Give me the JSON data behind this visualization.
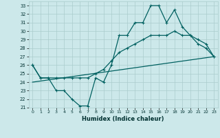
{
  "xlabel": "Humidex (Indice chaleur)",
  "ylabel": "",
  "bg_color": "#cce8ea",
  "grid_color": "#aacccc",
  "line_color": "#006060",
  "ylim": [
    21,
    33.5
  ],
  "xlim": [
    -0.5,
    23.5
  ],
  "yticks": [
    21,
    22,
    23,
    24,
    25,
    26,
    27,
    28,
    29,
    30,
    31,
    32,
    33
  ],
  "xticks": [
    0,
    1,
    2,
    3,
    4,
    5,
    6,
    7,
    8,
    9,
    10,
    11,
    12,
    13,
    14,
    15,
    16,
    17,
    18,
    19,
    20,
    21,
    22,
    23
  ],
  "line1_x": [
    0,
    1,
    2,
    3,
    4,
    5,
    6,
    7,
    8,
    9,
    10,
    11,
    12,
    13,
    14,
    15,
    16,
    17,
    18,
    19,
    20,
    21,
    22,
    23
  ],
  "line1_y": [
    26,
    24.5,
    24.5,
    23,
    23,
    22,
    21.2,
    21.2,
    24.5,
    24,
    26,
    29.5,
    29.5,
    31,
    31,
    33,
    33,
    31,
    32.5,
    30.5,
    29.5,
    28.5,
    28,
    27
  ],
  "line2_x": [
    0,
    1,
    2,
    3,
    4,
    5,
    6,
    7,
    8,
    9,
    10,
    11,
    12,
    13,
    14,
    15,
    16,
    17,
    18,
    19,
    20,
    21,
    22,
    23
  ],
  "line2_y": [
    26,
    24.5,
    24.5,
    24.5,
    24.5,
    24.5,
    24.5,
    24.5,
    25,
    25.5,
    26.5,
    27.5,
    28,
    28.5,
    29,
    29.5,
    29.5,
    29.5,
    30,
    29.5,
    29.5,
    29,
    28.5,
    27
  ],
  "line3_x": [
    0,
    23
  ],
  "line3_y": [
    24,
    27
  ]
}
